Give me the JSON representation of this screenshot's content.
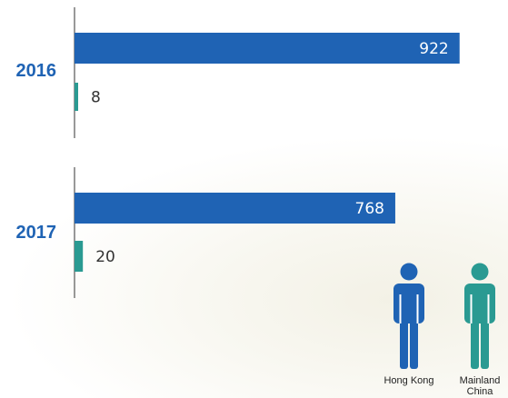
{
  "chart_data": {
    "type": "bar",
    "orientation": "horizontal",
    "categories": [
      "2016",
      "2017"
    ],
    "series": [
      {
        "name": "Hong Kong",
        "values": [
          922,
          768
        ],
        "color": "#1f63b4",
        "icon": "person-icon"
      },
      {
        "name": "Mainland China",
        "values": [
          8,
          20
        ],
        "color": "#2a9a92",
        "icon": "person-icon"
      }
    ],
    "xlim": [
      0,
      940
    ],
    "axis_color": "#333333",
    "category_label_color": "#1f63b4",
    "grid": false,
    "legend_position": "bottom-right",
    "legend_labels": [
      [
        "Hong Kong"
      ],
      [
        "Mainland",
        "China"
      ]
    ]
  }
}
